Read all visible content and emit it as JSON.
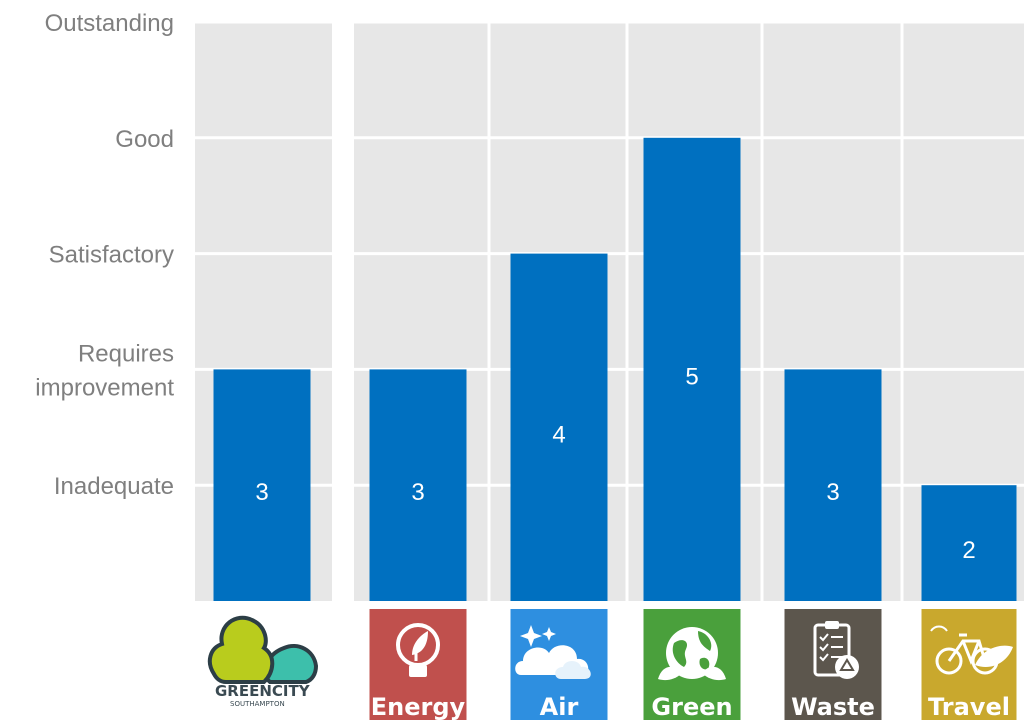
{
  "chart_data": {
    "type": "bar",
    "categories": [
      "GREENCITY",
      "Energy",
      "Air",
      "Green",
      "Waste",
      "Travel"
    ],
    "values": [
      3,
      3,
      4,
      5,
      3,
      2
    ],
    "value_labels": [
      "3",
      "3",
      "4",
      "5",
      "3",
      "2"
    ],
    "ylim": [
      1,
      6
    ],
    "y_ticks": [
      {
        "value": 2,
        "label": [
          "Inadequate"
        ]
      },
      {
        "value": 3,
        "label": [
          "Requires",
          "improvement"
        ]
      },
      {
        "value": 4,
        "label": [
          "Satisfactory"
        ]
      },
      {
        "value": 5,
        "label": [
          "Good"
        ]
      },
      {
        "value": 6,
        "label": [
          "Outstanding"
        ]
      }
    ],
    "grid": true,
    "bar_color": "#0070c0",
    "plot_background": "#e7e7e7",
    "title": "",
    "xlabel": "",
    "ylabel": ""
  },
  "logos": {
    "greencity": {
      "word_green": "GREEN",
      "word_city": "CITY",
      "sub": "SOUTHAMPTON",
      "icon": "cloud-logo-icon"
    },
    "tiles": [
      {
        "label": "Energy",
        "color": "#c0504d",
        "icon": "lightbulb-leaf-icon"
      },
      {
        "label": "Air",
        "color": "#2e8fe0",
        "icon": "cloud-sparkle-icon"
      },
      {
        "label": "Green",
        "color": "#4aa03c",
        "icon": "earth-leaves-icon"
      },
      {
        "label": "Waste",
        "color": "#5c564d",
        "icon": "clipboard-recycle-icon"
      },
      {
        "label": "Travel",
        "color": "#c9a82d",
        "icon": "bicycle-leaf-icon"
      }
    ]
  }
}
